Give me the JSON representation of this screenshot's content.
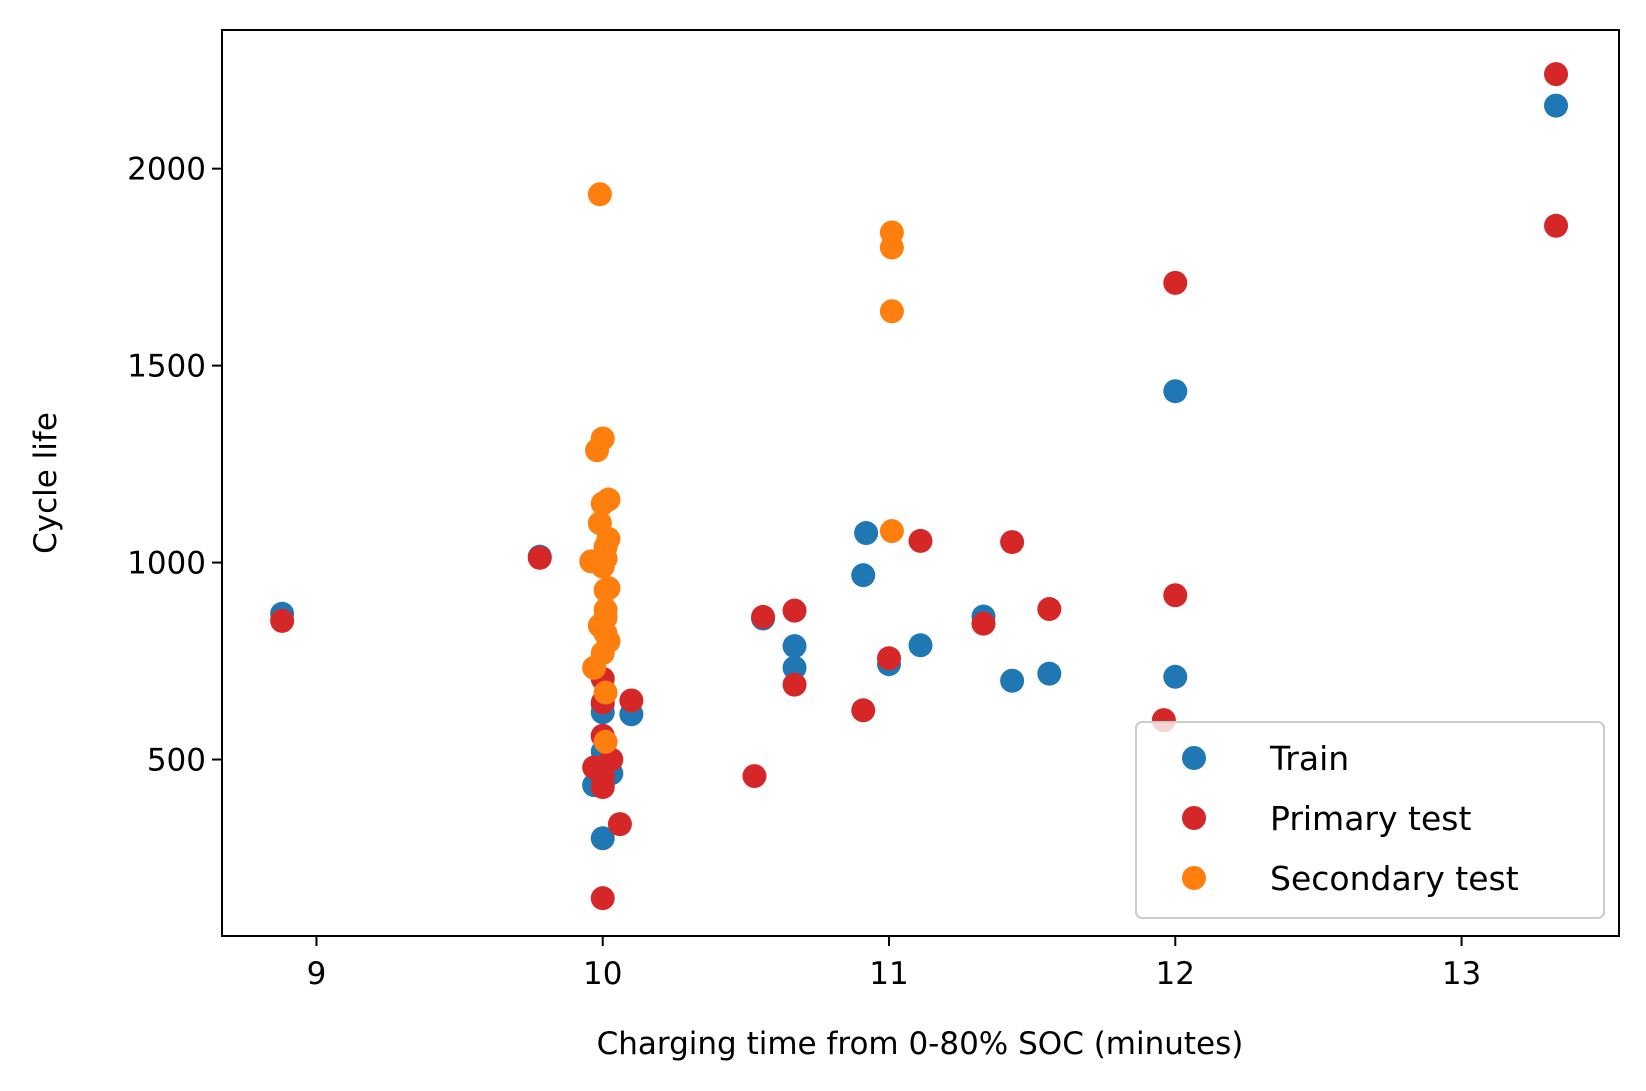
{
  "chart_data": {
    "type": "scatter",
    "xlabel": "Charging time from 0-80% SOC (minutes)",
    "ylabel": "Cycle life",
    "xlim": [
      8.67,
      13.55
    ],
    "ylim": [
      52,
      2352
    ],
    "x_ticks": [
      9,
      10,
      11,
      12,
      13
    ],
    "y_ticks": [
      500,
      1000,
      1500,
      2000
    ],
    "grid": false,
    "legend_position": "lower-right",
    "series": [
      {
        "name": "Train",
        "color": "#1f77b4",
        "x": [
          8.88,
          9.78,
          9.97,
          10.0,
          10.0,
          10.0,
          10.0,
          10.0,
          10.0,
          10.03,
          10.1,
          10.56,
          10.67,
          10.67,
          10.91,
          10.92,
          11.0,
          11.11,
          11.33,
          11.43,
          11.56,
          12.0,
          12.0,
          13.33
        ],
        "y": [
          870,
          1015,
          435,
          300,
          460,
          520,
          560,
          620,
          640,
          465,
          615,
          858,
          788,
          733,
          968,
          1075,
          742,
          790,
          863,
          700,
          718,
          710,
          1435,
          2160
        ]
      },
      {
        "name": "Primary test",
        "color": "#d62728",
        "x": [
          8.88,
          9.78,
          9.97,
          10.0,
          10.0,
          10.0,
          10.0,
          10.0,
          10.0,
          10.03,
          10.06,
          10.1,
          10.53,
          10.56,
          10.67,
          10.67,
          10.91,
          11.0,
          11.11,
          11.33,
          11.43,
          11.56,
          11.96,
          12.0,
          12.0,
          13.33,
          13.33
        ],
        "y": [
          852,
          1012,
          480,
          148,
          430,
          455,
          645,
          705,
          560,
          500,
          336,
          650,
          458,
          862,
          878,
          690,
          625,
          757,
          1055,
          845,
          1052,
          882,
          600,
          917,
          1710,
          1855,
          2240
        ]
      },
      {
        "name": "Secondary test",
        "color": "#ff7f0e",
        "x": [
          9.96,
          9.99,
          10.0,
          9.98,
          10.0,
          10.02,
          10.02,
          9.99,
          10.01,
          10.01,
          10.0,
          10.01,
          10.02,
          10.01,
          9.99,
          10.01,
          10.01,
          10.02,
          10.0,
          9.97,
          10.01,
          10.01,
          11.01,
          11.01,
          11.01,
          11.01
        ],
        "y": [
          1003,
          1935,
          1150,
          1285,
          1315,
          1160,
          1060,
          1100,
          1040,
          1010,
          990,
          930,
          935,
          880,
          840,
          860,
          820,
          800,
          770,
          733,
          670,
          545,
          1080,
          1638,
          1800,
          1838
        ]
      }
    ]
  }
}
